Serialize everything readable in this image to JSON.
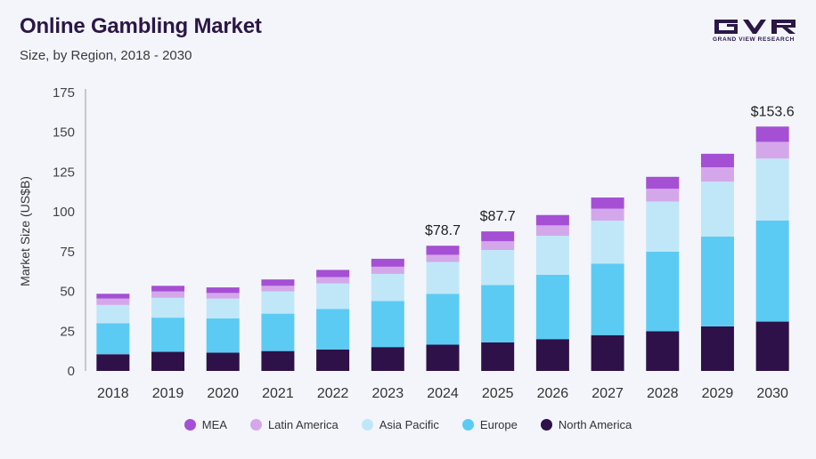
{
  "header": {
    "title": "Online Gambling Market",
    "subtitle": "Size, by Region, 2018 - 2030"
  },
  "logo": {
    "text": "GRAND VIEW RESEARCH",
    "color": "#2b1746"
  },
  "chart_data": {
    "type": "bar",
    "stacked": true,
    "categories": [
      "2018",
      "2019",
      "2020",
      "2021",
      "2022",
      "2023",
      "2024",
      "2025",
      "2026",
      "2027",
      "2028",
      "2029",
      "2030"
    ],
    "series": [
      {
        "name": "North America",
        "color": "#2d1148",
        "values": [
          10.5,
          12,
          11.5,
          12.5,
          13.5,
          15,
          16.5,
          18,
          20,
          22.5,
          25,
          28,
          31
        ]
      },
      {
        "name": "Europe",
        "color": "#5ccbf3",
        "values": [
          19.5,
          21.5,
          21.5,
          23.5,
          25.5,
          29,
          32,
          36,
          40.5,
          45,
          50,
          56.5,
          63.5
        ]
      },
      {
        "name": "Asia Pacific",
        "color": "#c0e7f8",
        "values": [
          11.5,
          12.5,
          12.5,
          14,
          16,
          17,
          20,
          22,
          24.5,
          27,
          31.5,
          34.5,
          39
        ]
      },
      {
        "name": "Latin America",
        "color": "#d4a7ea",
        "values": [
          4,
          4,
          3.5,
          3.5,
          4,
          4.5,
          4.5,
          5.5,
          6.5,
          7.5,
          8,
          9,
          10.5
        ]
      },
      {
        "name": "MEA",
        "color": "#a54fd4",
        "values": [
          3,
          3.5,
          3.5,
          4,
          4.5,
          5,
          5.7,
          6.2,
          6.5,
          7,
          7.5,
          8.5,
          9.6
        ]
      }
    ],
    "annotations": [
      {
        "category": "2024",
        "text": "$78.7"
      },
      {
        "category": "2025",
        "text": "$87.7"
      },
      {
        "category": "2030",
        "text": "$153.6"
      }
    ],
    "ylabel": "Market Size (US$B)",
    "xlabel": "",
    "ylim": [
      0,
      175
    ],
    "yticks": [
      "0",
      "25",
      "50",
      "75",
      "100",
      "125",
      "150",
      "175"
    ],
    "legend_order": [
      "MEA",
      "Latin America",
      "Asia Pacific",
      "Europe",
      "North America"
    ],
    "legend_position": "bottom",
    "grid": false
  }
}
